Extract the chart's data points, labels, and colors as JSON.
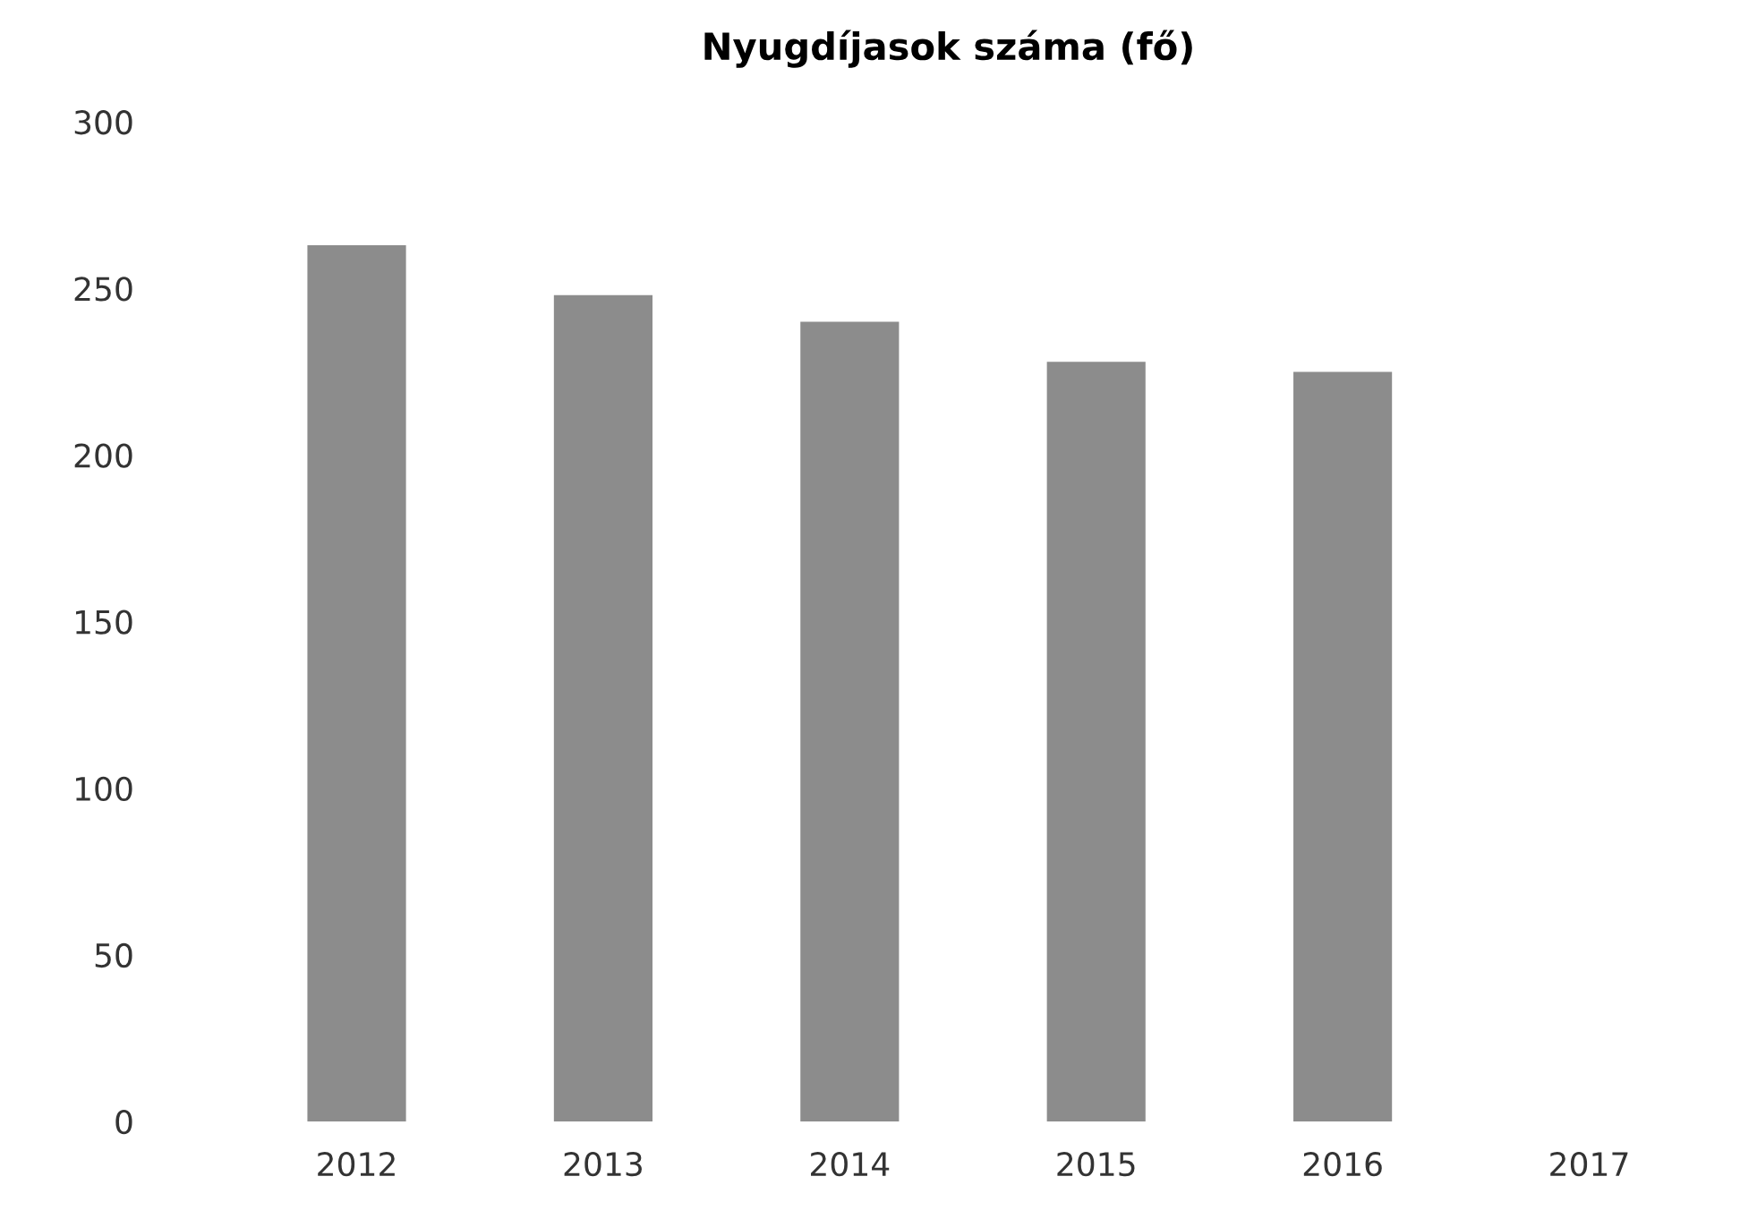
{
  "chart_data": {
    "type": "bar",
    "title": "Nyugdíjasok száma (fő)",
    "categories": [
      "2012",
      "2013",
      "2014",
      "2015",
      "2016",
      "2017"
    ],
    "values": [
      263,
      248,
      240,
      228,
      225,
      null
    ],
    "color": "#8c8c8c",
    "ylim": [
      0,
      300
    ],
    "yticks": [
      0,
      50,
      100,
      150,
      200,
      250,
      300
    ],
    "grid": false
  }
}
